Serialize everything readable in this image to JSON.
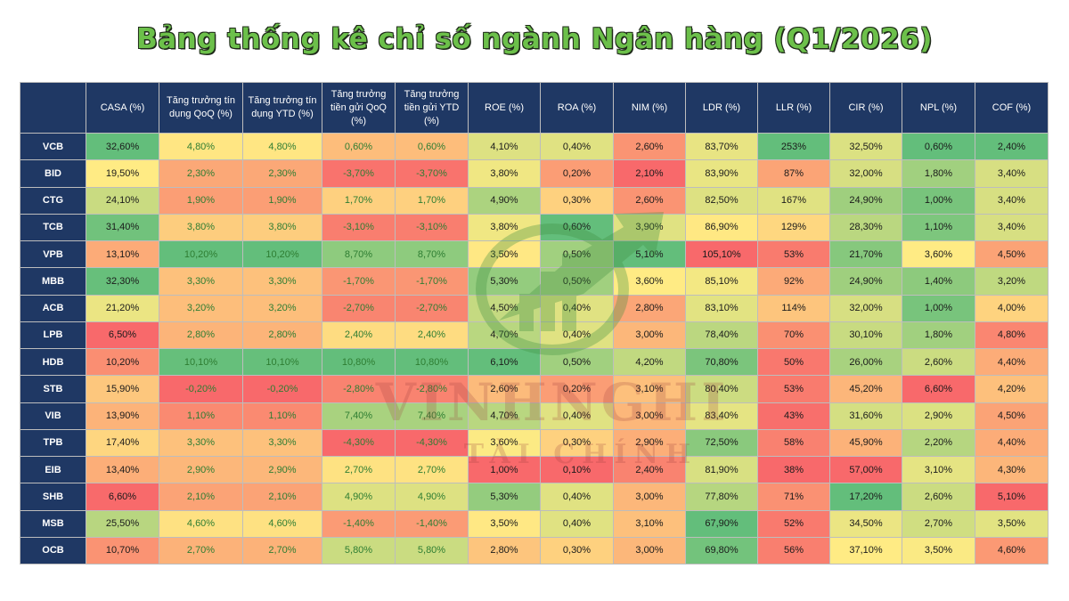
{
  "title": "Bảng thống kê chỉ số ngành Ngân hàng (Q1/2026)",
  "watermark": {
    "line1": "VINHNGHI",
    "line2": "TÀI CHÍNH"
  },
  "colors": {
    "header_bg": "#1f3864",
    "title": "#6cc04a",
    "best": "#63be7b",
    "mid": "#ffeb84",
    "worst": "#f8696b"
  },
  "chart_data": {
    "type": "table",
    "title": "Bảng thống kê chỉ số ngành Ngân hàng (Q1/2026)",
    "columns": [
      "",
      "CASA (%)",
      "Tăng trưởng tín dụng QoQ (%)",
      "Tăng trưởng tín dụng YTD (%)",
      "Tăng trưởng tiền gửi QoQ (%)",
      "Tăng trưởng tiền gửi YTD (%)",
      "ROE (%)",
      "ROA (%)",
      "NIM (%)",
      "LDR (%)",
      "LLR (%)",
      "CIR (%)",
      "NPL (%)",
      "COF (%)"
    ],
    "column_color_direction": [
      0,
      1,
      1,
      1,
      1,
      1,
      1,
      1,
      1,
      -1,
      1,
      -1,
      -1,
      -1
    ],
    "rows": [
      [
        "VCB",
        "32,60%",
        "4,80%",
        "4,80%",
        "0,60%",
        "0,60%",
        "4,10%",
        "0,40%",
        "2,60%",
        "83,70%",
        "253%",
        "32,50%",
        "0,60%",
        "2,40%"
      ],
      [
        "BID",
        "19,50%",
        "2,30%",
        "2,30%",
        "-3,70%",
        "-3,70%",
        "3,80%",
        "0,20%",
        "2,10%",
        "83,90%",
        "87%",
        "32,00%",
        "1,80%",
        "3,40%"
      ],
      [
        "CTG",
        "24,10%",
        "1,90%",
        "1,90%",
        "1,70%",
        "1,70%",
        "4,90%",
        "0,30%",
        "2,60%",
        "82,50%",
        "167%",
        "24,90%",
        "1,00%",
        "3,40%"
      ],
      [
        "TCB",
        "31,40%",
        "3,80%",
        "3,80%",
        "-3,10%",
        "-3,10%",
        "3,80%",
        "0,60%",
        "3,90%",
        "86,90%",
        "129%",
        "28,30%",
        "1,10%",
        "3,40%"
      ],
      [
        "VPB",
        "13,10%",
        "10,20%",
        "10,20%",
        "8,70%",
        "8,70%",
        "3,50%",
        "0,50%",
        "5,10%",
        "105,10%",
        "53%",
        "21,70%",
        "3,60%",
        "4,50%"
      ],
      [
        "MBB",
        "32,30%",
        "3,30%",
        "3,30%",
        "-1,70%",
        "-1,70%",
        "5,30%",
        "0,50%",
        "3,60%",
        "85,10%",
        "92%",
        "24,90%",
        "1,40%",
        "3,20%"
      ],
      [
        "ACB",
        "21,20%",
        "3,20%",
        "3,20%",
        "-2,70%",
        "-2,70%",
        "4,50%",
        "0,40%",
        "2,80%",
        "83,10%",
        "114%",
        "32,00%",
        "1,00%",
        "4,00%"
      ],
      [
        "LPB",
        "6,50%",
        "2,80%",
        "2,80%",
        "2,40%",
        "2,40%",
        "4,70%",
        "0,40%",
        "3,00%",
        "78,40%",
        "70%",
        "30,10%",
        "1,80%",
        "4,80%"
      ],
      [
        "HDB",
        "10,20%",
        "10,10%",
        "10,10%",
        "10,80%",
        "10,80%",
        "6,10%",
        "0,50%",
        "4,20%",
        "70,80%",
        "50%",
        "26,00%",
        "2,60%",
        "4,40%"
      ],
      [
        "STB",
        "15,90%",
        "-0,20%",
        "-0,20%",
        "-2,80%",
        "-2,80%",
        "2,60%",
        "0,20%",
        "3,10%",
        "80,40%",
        "53%",
        "45,20%",
        "6,60%",
        "4,20%"
      ],
      [
        "VIB",
        "13,90%",
        "1,10%",
        "1,10%",
        "7,40%",
        "7,40%",
        "4,70%",
        "0,40%",
        "3,00%",
        "83,40%",
        "43%",
        "31,60%",
        "2,90%",
        "4,50%"
      ],
      [
        "TPB",
        "17,40%",
        "3,30%",
        "3,30%",
        "-4,30%",
        "-4,30%",
        "3,60%",
        "0,30%",
        "2,90%",
        "72,50%",
        "58%",
        "45,90%",
        "2,20%",
        "4,40%"
      ],
      [
        "EIB",
        "13,40%",
        "2,90%",
        "2,90%",
        "2,70%",
        "2,70%",
        "1,00%",
        "0,10%",
        "2,40%",
        "81,90%",
        "38%",
        "57,00%",
        "3,10%",
        "4,30%"
      ],
      [
        "SHB",
        "6,60%",
        "2,10%",
        "2,10%",
        "4,90%",
        "4,90%",
        "5,30%",
        "0,40%",
        "3,00%",
        "77,80%",
        "71%",
        "17,20%",
        "2,60%",
        "5,10%"
      ],
      [
        "MSB",
        "25,50%",
        "4,60%",
        "4,60%",
        "-1,40%",
        "-1,40%",
        "3,50%",
        "0,40%",
        "3,10%",
        "67,90%",
        "52%",
        "34,50%",
        "2,70%",
        "3,50%"
      ],
      [
        "OCB",
        "10,70%",
        "2,70%",
        "2,70%",
        "5,80%",
        "5,80%",
        "2,80%",
        "0,30%",
        "3,00%",
        "69,80%",
        "56%",
        "37,10%",
        "3,50%",
        "4,60%"
      ]
    ]
  }
}
